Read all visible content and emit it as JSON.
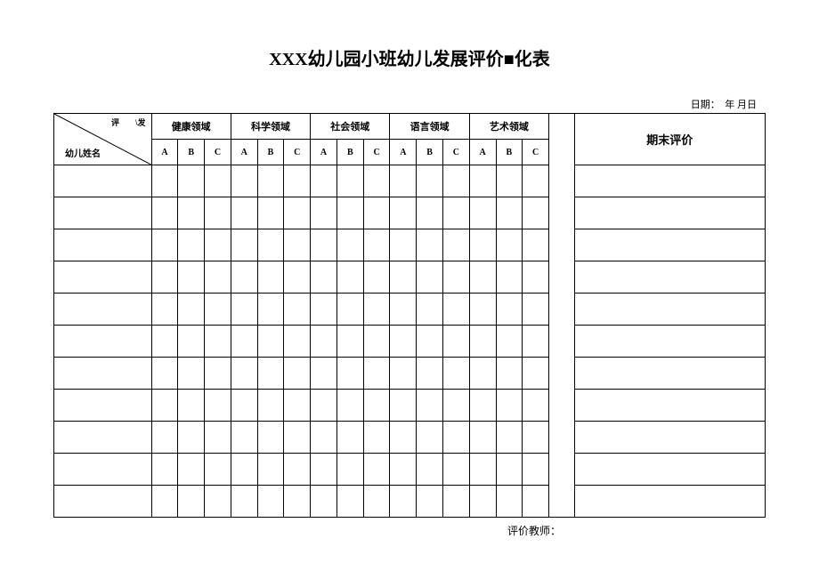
{
  "title": "XXX幼儿园小班幼儿发展评价■化表",
  "date_label": "日期：　年 月日",
  "diag_top": "评　　\\发",
  "diag_bottom": "幼儿姓名",
  "domains": [
    "健康领域",
    "科学领域",
    "社会领域",
    "语言领域",
    "艺术领域"
  ],
  "sub_columns": [
    "A",
    "B",
    "C"
  ],
  "final_col": "期末评价",
  "footer": "评价教师：",
  "row_count": 11
}
